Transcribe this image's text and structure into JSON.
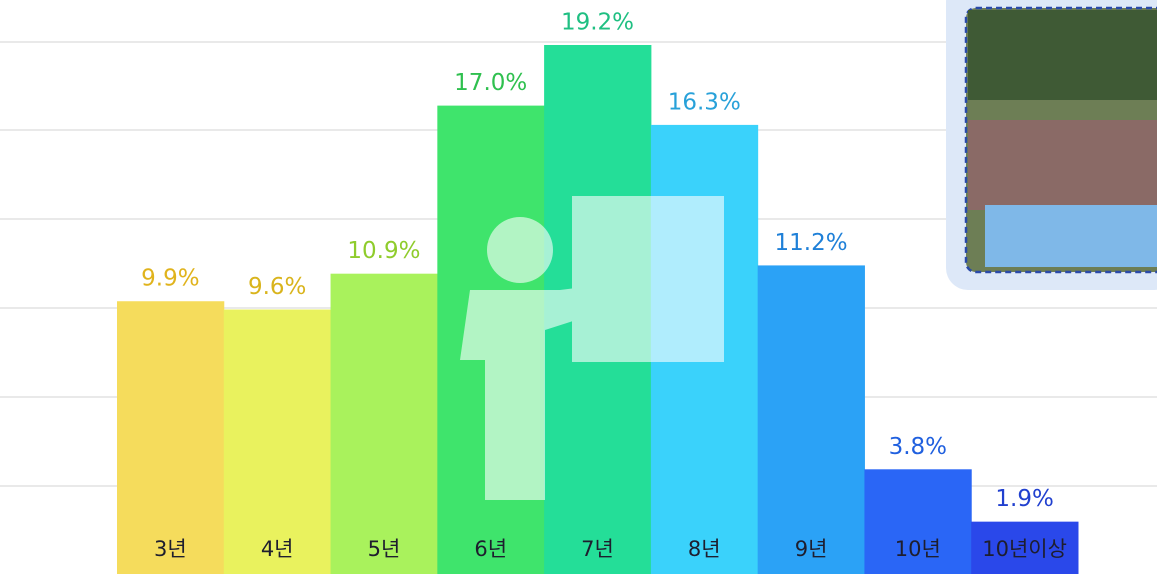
{
  "chart_data": {
    "type": "bar",
    "categories": [
      "3년",
      "4년",
      "5년",
      "6년",
      "7년",
      "8년",
      "9년",
      "10년",
      "10년이상"
    ],
    "values": [
      9.9,
      9.6,
      10.9,
      17.0,
      19.2,
      16.3,
      11.2,
      3.8,
      1.9
    ],
    "value_labels": [
      "9.9%",
      "9.6%",
      "10.9%",
      "17.0%",
      "19.2%",
      "16.3%",
      "11.2%",
      "3.8%",
      "1.9%"
    ],
    "colors": [
      "#f5dc5c",
      "#e9f25e",
      "#a9f25c",
      "#3fe46c",
      "#24de98",
      "#3ad2fb",
      "#2ba2f6",
      "#2a66f6",
      "#2a48ea"
    ],
    "label_colors": [
      "#e0b31c",
      "#d9b41c",
      "#8fcc2c",
      "#2fc04f",
      "#1fbf82",
      "#28a1d9",
      "#1f80d8",
      "#2060df",
      "#2140cf"
    ]
  }
}
